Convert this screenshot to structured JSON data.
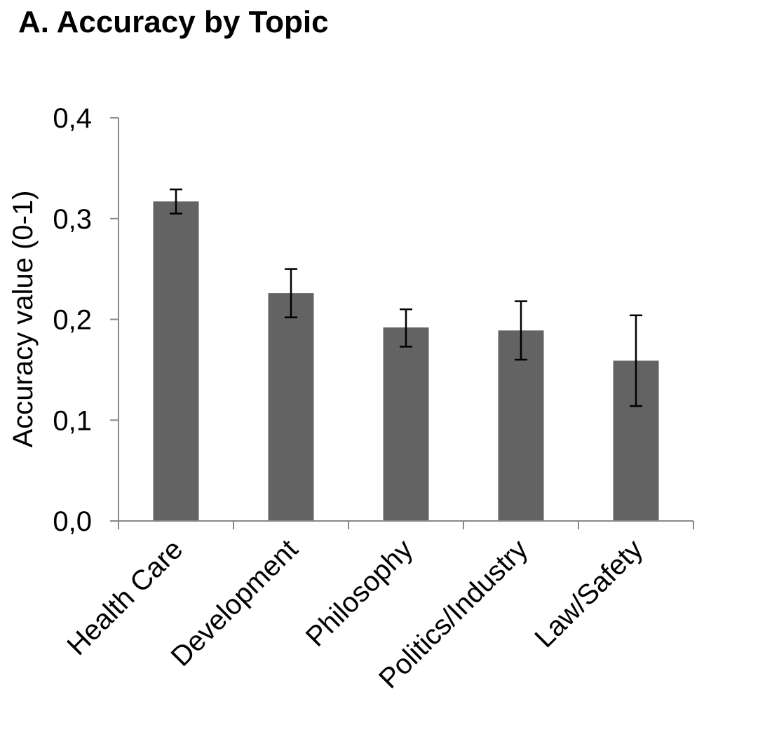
{
  "chart_data": {
    "type": "bar",
    "title": "A.  Accuracy by Topic",
    "xlabel": "",
    "ylabel": "Accuracy value (0-1)",
    "ylim": [
      0,
      0.4
    ],
    "yticks": [
      0,
      0.1,
      0.2,
      0.3,
      0.4
    ],
    "ytick_labels": [
      "0,0",
      "0,1",
      "0,2",
      "0,3",
      "0,4"
    ],
    "categories": [
      "Health Care",
      "Development",
      "Philosophy",
      "Politics/Industry",
      "Law/Safety"
    ],
    "values": [
      0.317,
      0.226,
      0.192,
      0.189,
      0.159
    ],
    "error_low": [
      0.305,
      0.202,
      0.173,
      0.16,
      0.114
    ],
    "error_high": [
      0.329,
      0.25,
      0.21,
      0.218,
      0.204
    ],
    "grid": false,
    "legend": "none",
    "bar_color": "#636363",
    "axis_color": "#888888",
    "error_color": "#000000"
  }
}
